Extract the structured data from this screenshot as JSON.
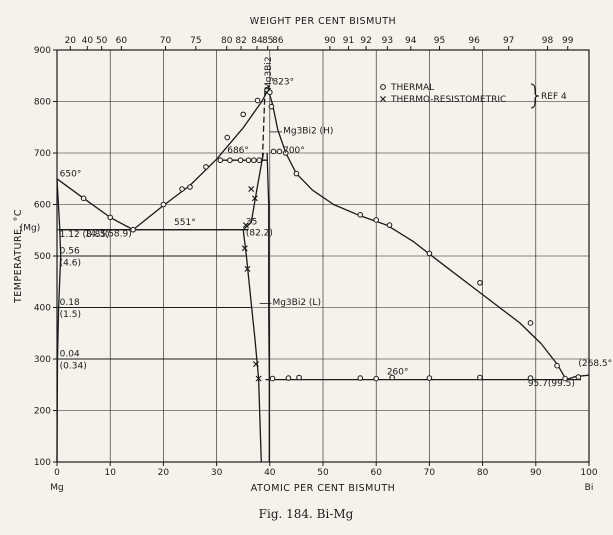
{
  "chart_data": {
    "type": "line",
    "caption": "Fig. 184. Bi-Mg",
    "xlabel": "ATOMIC PER CENT BISMUTH",
    "x2label": "WEIGHT PER CENT BISMUTH",
    "ylabel": "TEMPERATURE, °C",
    "xlim": [
      0,
      100
    ],
    "ylim": [
      100,
      900
    ],
    "x_ticks": [
      "0",
      "10",
      "20",
      "30",
      "40",
      "50",
      "60",
      "70",
      "80",
      "90",
      "100"
    ],
    "y_ticks": [
      "100",
      "200",
      "300",
      "400",
      "500",
      "600",
      "700",
      "800",
      "900"
    ],
    "x_end_labels": {
      "left": "Mg",
      "right": "Bi"
    },
    "top_ticks": [
      {
        "label": "20",
        "x": 2.5
      },
      {
        "label": "40",
        "x": 5.7
      },
      {
        "label": "50",
        "x": 8.4
      },
      {
        "label": "60",
        "x": 12.1
      },
      {
        "label": "70",
        "x": 20.4
      },
      {
        "label": "75",
        "x": 26.1
      },
      {
        "label": "80",
        "x": 31.9
      },
      {
        "label": "82",
        "x": 34.6
      },
      {
        "label": "84",
        "x": 37.6
      },
      {
        "label": "85",
        "x": 39.6
      },
      {
        "label": "86",
        "x": 41.5
      },
      {
        "label": "90",
        "x": 51.3
      },
      {
        "label": "91",
        "x": 54.8
      },
      {
        "label": "92",
        "x": 58.1
      },
      {
        "label": "93",
        "x": 62.1
      },
      {
        "label": "94",
        "x": 66.5
      },
      {
        "label": "95",
        "x": 71.9
      },
      {
        "label": "96",
        "x": 78.4
      },
      {
        "label": "97",
        "x": 84.9
      },
      {
        "label": "98",
        "x": 92.2
      },
      {
        "label": "99",
        "x": 96.0
      }
    ],
    "curves": [
      {
        "name": "liquidus-mg-side",
        "points": [
          [
            0,
            650
          ],
          [
            5,
            612
          ],
          [
            10,
            575
          ],
          [
            14.3,
            551
          ]
        ]
      },
      {
        "name": "liquidus-compound-left",
        "points": [
          [
            14.3,
            551
          ],
          [
            20,
            598
          ],
          [
            25,
            637
          ],
          [
            30,
            688
          ],
          [
            35,
            749
          ],
          [
            38.5,
            800
          ],
          [
            39.7,
            823
          ]
        ]
      },
      {
        "name": "liquidus-compound-right",
        "points": [
          [
            39.7,
            823
          ],
          [
            40.5,
            795
          ],
          [
            41.5,
            745
          ],
          [
            43,
            700
          ],
          [
            45,
            660
          ],
          [
            48,
            628
          ],
          [
            52,
            600
          ],
          [
            57,
            578
          ],
          [
            62,
            560
          ],
          [
            67,
            528
          ],
          [
            72,
            488
          ],
          [
            80,
            425
          ],
          [
            87,
            370
          ],
          [
            91,
            330
          ],
          [
            94,
            290
          ],
          [
            95.7,
            260
          ]
        ]
      },
      {
        "name": "liquidus-bi-end",
        "points": [
          [
            95.7,
            260
          ],
          [
            97.5,
            266
          ],
          [
            100,
            268.5
          ]
        ]
      },
      {
        "name": "mg-solvus",
        "points": [
          [
            0,
            650
          ],
          [
            0.5,
            555
          ],
          [
            0.7,
            500
          ],
          [
            0.3,
            400
          ],
          [
            0.1,
            300
          ],
          [
            0,
            100
          ]
        ]
      },
      {
        "name": "mg3bi2-l-left",
        "points": [
          [
            38.8,
            700
          ],
          [
            37.5,
            625
          ],
          [
            36.5,
            565
          ],
          [
            35,
            551
          ],
          [
            35.6,
            500
          ],
          [
            36.4,
            420
          ],
          [
            37.2,
            340
          ],
          [
            37.9,
            262
          ],
          [
            38.4,
            100
          ]
        ]
      },
      {
        "name": "mg3bi2-l-right",
        "points": [
          [
            39.5,
            700
          ],
          [
            39.8,
            600
          ],
          [
            39.8,
            400
          ],
          [
            39.9,
            262
          ],
          [
            39.9,
            100
          ]
        ]
      },
      {
        "name": "peritectic-686",
        "points": [
          [
            30.7,
            686
          ],
          [
            39.5,
            686
          ]
        ]
      },
      {
        "name": "eutectic-551",
        "points": [
          [
            0.5,
            551
          ],
          [
            36,
            551
          ]
        ]
      },
      {
        "name": "eutectic-260",
        "points": [
          [
            39.2,
            260
          ],
          [
            98.5,
            260
          ]
        ]
      }
    ],
    "dashed_curves": [
      {
        "name": "mg3bi2-h-boundary",
        "points": [
          [
            39.1,
            823
          ],
          [
            38.6,
            686
          ]
        ]
      }
    ],
    "horizontal_lines": [
      {
        "name": "line-551",
        "y": 551,
        "x_from": 0,
        "x_to": 36
      },
      {
        "name": "line-500",
        "y": 500,
        "x_from": 0,
        "x_to": 35.5
      },
      {
        "name": "line-400",
        "y": 400,
        "x_from": 0,
        "x_to": 36.5
      },
      {
        "name": "line-300",
        "y": 300,
        "x_from": 0,
        "x_to": 37.5
      }
    ],
    "thermal_points": [
      [
        5,
        612
      ],
      [
        10,
        575
      ],
      [
        14.3,
        551
      ],
      [
        20,
        600
      ],
      [
        23.5,
        630
      ],
      [
        25,
        634
      ],
      [
        28,
        673
      ],
      [
        30.7,
        686
      ],
      [
        32.5,
        686
      ],
      [
        34.5,
        686
      ],
      [
        36,
        686
      ],
      [
        37,
        686
      ],
      [
        38,
        686
      ],
      [
        32,
        730
      ],
      [
        35,
        775
      ],
      [
        37.7,
        802
      ],
      [
        39.5,
        823
      ],
      [
        40,
        818
      ],
      [
        40.3,
        790
      ],
      [
        40.7,
        703
      ],
      [
        41.8,
        703
      ],
      [
        43,
        700
      ],
      [
        45,
        660
      ],
      [
        57,
        580
      ],
      [
        60,
        570
      ],
      [
        62.5,
        560
      ],
      [
        70,
        505
      ],
      [
        79.5,
        448
      ],
      [
        89,
        370
      ],
      [
        94,
        287
      ],
      [
        40.5,
        262
      ],
      [
        43.5,
        263
      ],
      [
        45.5,
        264
      ],
      [
        57,
        263
      ],
      [
        60,
        262
      ],
      [
        63,
        264
      ],
      [
        70,
        263
      ],
      [
        79.5,
        264
      ],
      [
        89,
        263
      ],
      [
        95.5,
        262
      ],
      [
        98,
        265
      ]
    ],
    "resistometric_points": [
      [
        36.5,
        630
      ],
      [
        37.2,
        612
      ],
      [
        35.5,
        560
      ],
      [
        35.3,
        515
      ],
      [
        35.8,
        475
      ],
      [
        37.4,
        290
      ],
      [
        37.9,
        262
      ]
    ],
    "annotations": [
      {
        "text": "650°",
        "x": 0.5,
        "y": 654
      },
      {
        "text": "551°",
        "x": 22,
        "y": 560
      },
      {
        "text": "14.3(58.9)",
        "x": 5.2,
        "y": 538
      },
      {
        "text": "1.12 (8.85)",
        "x": 0.5,
        "y": 537
      },
      {
        "text": "(Mg)",
        "x": -7,
        "y": 550
      },
      {
        "text": "0.56",
        "x": 0.5,
        "y": 505
      },
      {
        "text": "(4.6)",
        "x": 0.5,
        "y": 482
      },
      {
        "text": "0.18",
        "x": 0.5,
        "y": 405
      },
      {
        "text": "(1.5)",
        "x": 0.5,
        "y": 382
      },
      {
        "text": "0.04",
        "x": 0.5,
        "y": 305
      },
      {
        "text": "(0.34)",
        "x": 0.5,
        "y": 282
      },
      {
        "text": "686°",
        "x": 32,
        "y": 700
      },
      {
        "text": "700°",
        "x": 42.5,
        "y": 700
      },
      {
        "text": "823°",
        "x": 40.5,
        "y": 833
      },
      {
        "text": "Mg3Bi2 (H)",
        "x": 42.5,
        "y": 738
      },
      {
        "text": "Mg3Bi2 (L)",
        "x": 40.5,
        "y": 405
      },
      {
        "text": "35",
        "x": 35.5,
        "y": 561
      },
      {
        "text": "(82.2)",
        "x": 35.5,
        "y": 540
      },
      {
        "text": "260°",
        "x": 62,
        "y": 270
      },
      {
        "text": "95.7(99.5)",
        "x": 88.5,
        "y": 248
      },
      {
        "text": "(268.5°)",
        "x": 98,
        "y": 286
      }
    ],
    "legend": {
      "position": "top-right",
      "items": [
        {
          "marker": "circle",
          "label": "THERMAL"
        },
        {
          "marker": "cross",
          "label": "THERMO-RESISTOMETRIC"
        }
      ],
      "reference": "REF 4"
    },
    "grid": true
  }
}
